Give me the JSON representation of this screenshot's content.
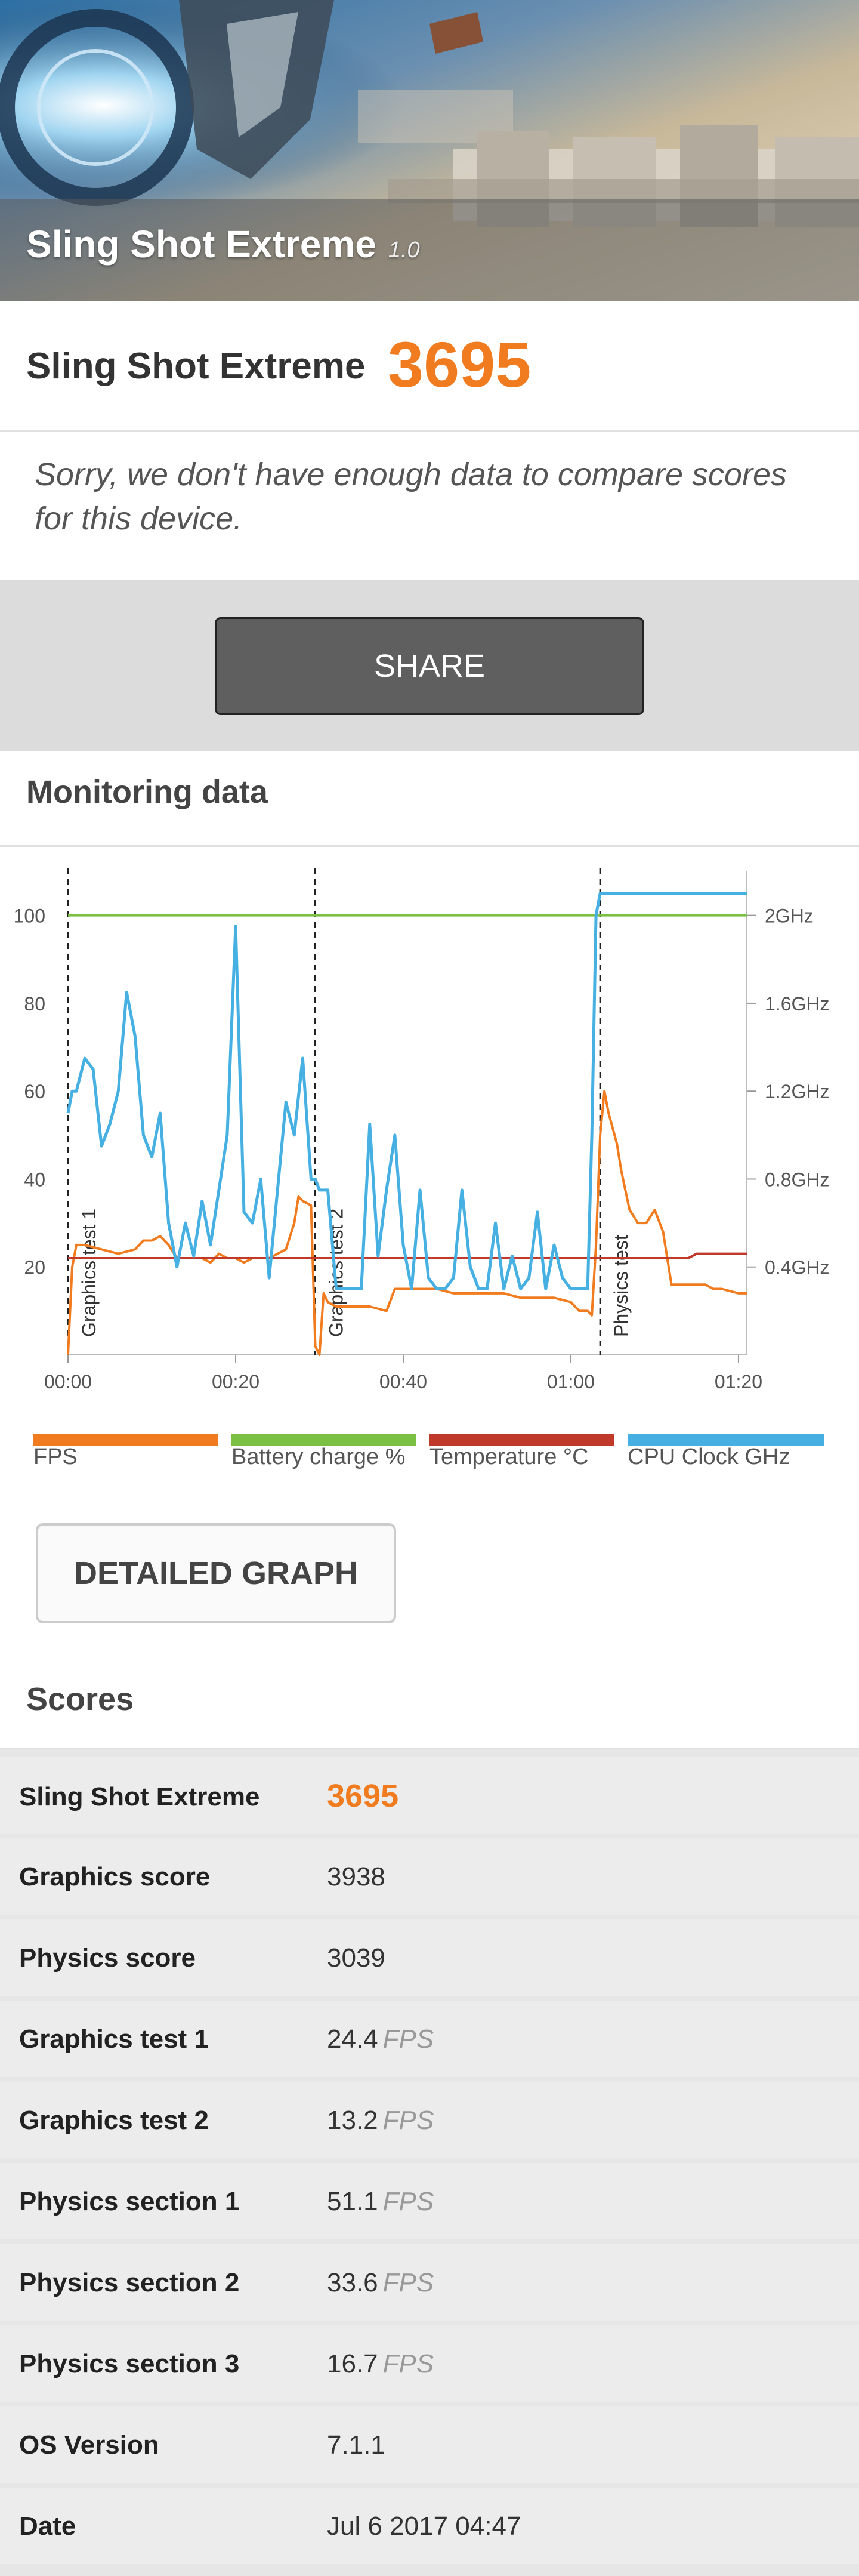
{
  "banner": {
    "title": "Sling Shot Extreme",
    "version": "1.0"
  },
  "score_header": {
    "title": "Sling Shot Extreme",
    "score": "3695"
  },
  "compare_message": "Sorry, we don't have enough data to compare scores for this device.",
  "share_label": "SHARE",
  "monitoring": {
    "title": "Monitoring data",
    "detailed_graph_label": "DETAILED GRAPH"
  },
  "chart_data": {
    "type": "line",
    "x_tick_labels": [
      "00:00",
      "00:20",
      "00:40",
      "01:00",
      "01:20"
    ],
    "x_range_seconds": [
      0,
      81
    ],
    "y_left_range": [
      0,
      110
    ],
    "y_left_ticks": [
      "20",
      "40",
      "60",
      "80",
      "100"
    ],
    "y_right_ticks": [
      "0.4GHz",
      "0.8GHz",
      "1.2GHz",
      "1.6GHz",
      "2GHz"
    ],
    "y_right_range_ghz": [
      0,
      2.2
    ],
    "annotations": [
      {
        "label": "Graphics test 1",
        "x": 0
      },
      {
        "label": "Graphics test 2",
        "x": 29.5
      },
      {
        "label": "Physics test",
        "x": 63.5
      }
    ],
    "series": [
      {
        "name": "FPS",
        "color": "#f07c1f",
        "points": [
          [
            0,
            0
          ],
          [
            0.5,
            20
          ],
          [
            1,
            25
          ],
          [
            2,
            25
          ],
          [
            4,
            24
          ],
          [
            6,
            23
          ],
          [
            8,
            24
          ],
          [
            9,
            26
          ],
          [
            10,
            26
          ],
          [
            11,
            27
          ],
          [
            12,
            25
          ],
          [
            13,
            22
          ],
          [
            15,
            22
          ],
          [
            16,
            22
          ],
          [
            17,
            21
          ],
          [
            18,
            23
          ],
          [
            19,
            22
          ],
          [
            20,
            22
          ],
          [
            21,
            21
          ],
          [
            22,
            22
          ],
          [
            24,
            22
          ],
          [
            26,
            24
          ],
          [
            27,
            30
          ],
          [
            27.5,
            36
          ],
          [
            28,
            35
          ],
          [
            29,
            34
          ],
          [
            29.5,
            2
          ],
          [
            30,
            0
          ],
          [
            30.5,
            14
          ],
          [
            31,
            12
          ],
          [
            32,
            11
          ],
          [
            34,
            11
          ],
          [
            36,
            11
          ],
          [
            38,
            10
          ],
          [
            39,
            15
          ],
          [
            40,
            15
          ],
          [
            42,
            15
          ],
          [
            44,
            15
          ],
          [
            46,
            14
          ],
          [
            48,
            14
          ],
          [
            50,
            14
          ],
          [
            52,
            14
          ],
          [
            54,
            13
          ],
          [
            56,
            13
          ],
          [
            58,
            13
          ],
          [
            60,
            12
          ],
          [
            61,
            10
          ],
          [
            62,
            10
          ],
          [
            62.5,
            9
          ],
          [
            63,
            25
          ],
          [
            63.5,
            50
          ],
          [
            64,
            60
          ],
          [
            64.5,
            55
          ],
          [
            65.5,
            48
          ],
          [
            66,
            42
          ],
          [
            67,
            33
          ],
          [
            68,
            30
          ],
          [
            69,
            30
          ],
          [
            70,
            33
          ],
          [
            71,
            28
          ],
          [
            72,
            16
          ],
          [
            74,
            16
          ],
          [
            76,
            16
          ],
          [
            77,
            15
          ],
          [
            78,
            15
          ],
          [
            80,
            14
          ],
          [
            81,
            14
          ]
        ]
      },
      {
        "name": "Battery charge %",
        "color": "#7bc043",
        "points": [
          [
            0,
            100
          ],
          [
            81,
            100
          ]
        ]
      },
      {
        "name": "Temperature °C",
        "color": "#c0392b",
        "points": [
          [
            0,
            22
          ],
          [
            74,
            22
          ],
          [
            75,
            23
          ],
          [
            81,
            23
          ]
        ]
      },
      {
        "name": "CPU Clock GHz",
        "color": "#45b0e1",
        "points": [
          [
            0,
            1.1
          ],
          [
            0.5,
            1.2
          ],
          [
            1,
            1.2
          ],
          [
            2,
            1.35
          ],
          [
            3,
            1.3
          ],
          [
            4,
            0.95
          ],
          [
            5,
            1.05
          ],
          [
            6,
            1.2
          ],
          [
            7,
            1.65
          ],
          [
            8,
            1.45
          ],
          [
            9,
            1.0
          ],
          [
            10,
            0.9
          ],
          [
            11,
            1.1
          ],
          [
            12,
            0.6
          ],
          [
            13,
            0.4
          ],
          [
            14,
            0.6
          ],
          [
            15,
            0.45
          ],
          [
            16,
            0.7
          ],
          [
            17,
            0.5
          ],
          [
            18,
            0.75
          ],
          [
            19,
            1.0
          ],
          [
            20,
            1.95
          ],
          [
            21,
            0.65
          ],
          [
            22,
            0.6
          ],
          [
            23,
            0.8
          ],
          [
            24,
            0.35
          ],
          [
            25,
            0.75
          ],
          [
            26,
            1.15
          ],
          [
            27,
            1.0
          ],
          [
            28,
            1.35
          ],
          [
            29,
            0.8
          ],
          [
            29.5,
            0.8
          ],
          [
            30,
            0.75
          ],
          [
            31,
            0.75
          ],
          [
            32,
            0.3
          ],
          [
            33,
            0.3
          ],
          [
            34,
            0.3
          ],
          [
            35,
            0.3
          ],
          [
            36,
            1.05
          ],
          [
            37,
            0.45
          ],
          [
            38,
            0.75
          ],
          [
            39,
            1.0
          ],
          [
            40,
            0.5
          ],
          [
            41,
            0.3
          ],
          [
            42,
            0.75
          ],
          [
            43,
            0.35
          ],
          [
            44,
            0.3
          ],
          [
            45,
            0.3
          ],
          [
            46,
            0.35
          ],
          [
            47,
            0.75
          ],
          [
            48,
            0.4
          ],
          [
            49,
            0.3
          ],
          [
            50,
            0.3
          ],
          [
            51,
            0.6
          ],
          [
            52,
            0.3
          ],
          [
            53,
            0.45
          ],
          [
            54,
            0.3
          ],
          [
            55,
            0.35
          ],
          [
            56,
            0.65
          ],
          [
            57,
            0.3
          ],
          [
            58,
            0.5
          ],
          [
            59,
            0.35
          ],
          [
            60,
            0.3
          ],
          [
            61,
            0.3
          ],
          [
            62,
            0.3
          ],
          [
            62.5,
            1.0
          ],
          [
            63,
            2.0
          ],
          [
            63.5,
            2.1
          ],
          [
            64,
            2.1
          ],
          [
            81,
            2.1
          ]
        ]
      }
    ],
    "legend_placement": "bottom",
    "grid": false
  },
  "scores": {
    "title": "Scores",
    "rows": [
      {
        "label": "Sling Shot Extreme",
        "value": "3695",
        "unit": ""
      },
      {
        "label": "Graphics score",
        "value": "3938",
        "unit": ""
      },
      {
        "label": "Physics score",
        "value": "3039",
        "unit": ""
      },
      {
        "label": "Graphics test 1",
        "value": "24.4",
        "unit": "FPS"
      },
      {
        "label": "Graphics test 2",
        "value": "13.2",
        "unit": "FPS"
      },
      {
        "label": "Physics section 1",
        "value": "51.1",
        "unit": "FPS"
      },
      {
        "label": "Physics section 2",
        "value": "33.6",
        "unit": "FPS"
      },
      {
        "label": "Physics section 3",
        "value": "16.7",
        "unit": "FPS"
      },
      {
        "label": "OS Version",
        "value": "7.1.1",
        "unit": ""
      },
      {
        "label": "Date",
        "value": "Jul 6 2017 04:47",
        "unit": ""
      }
    ]
  }
}
